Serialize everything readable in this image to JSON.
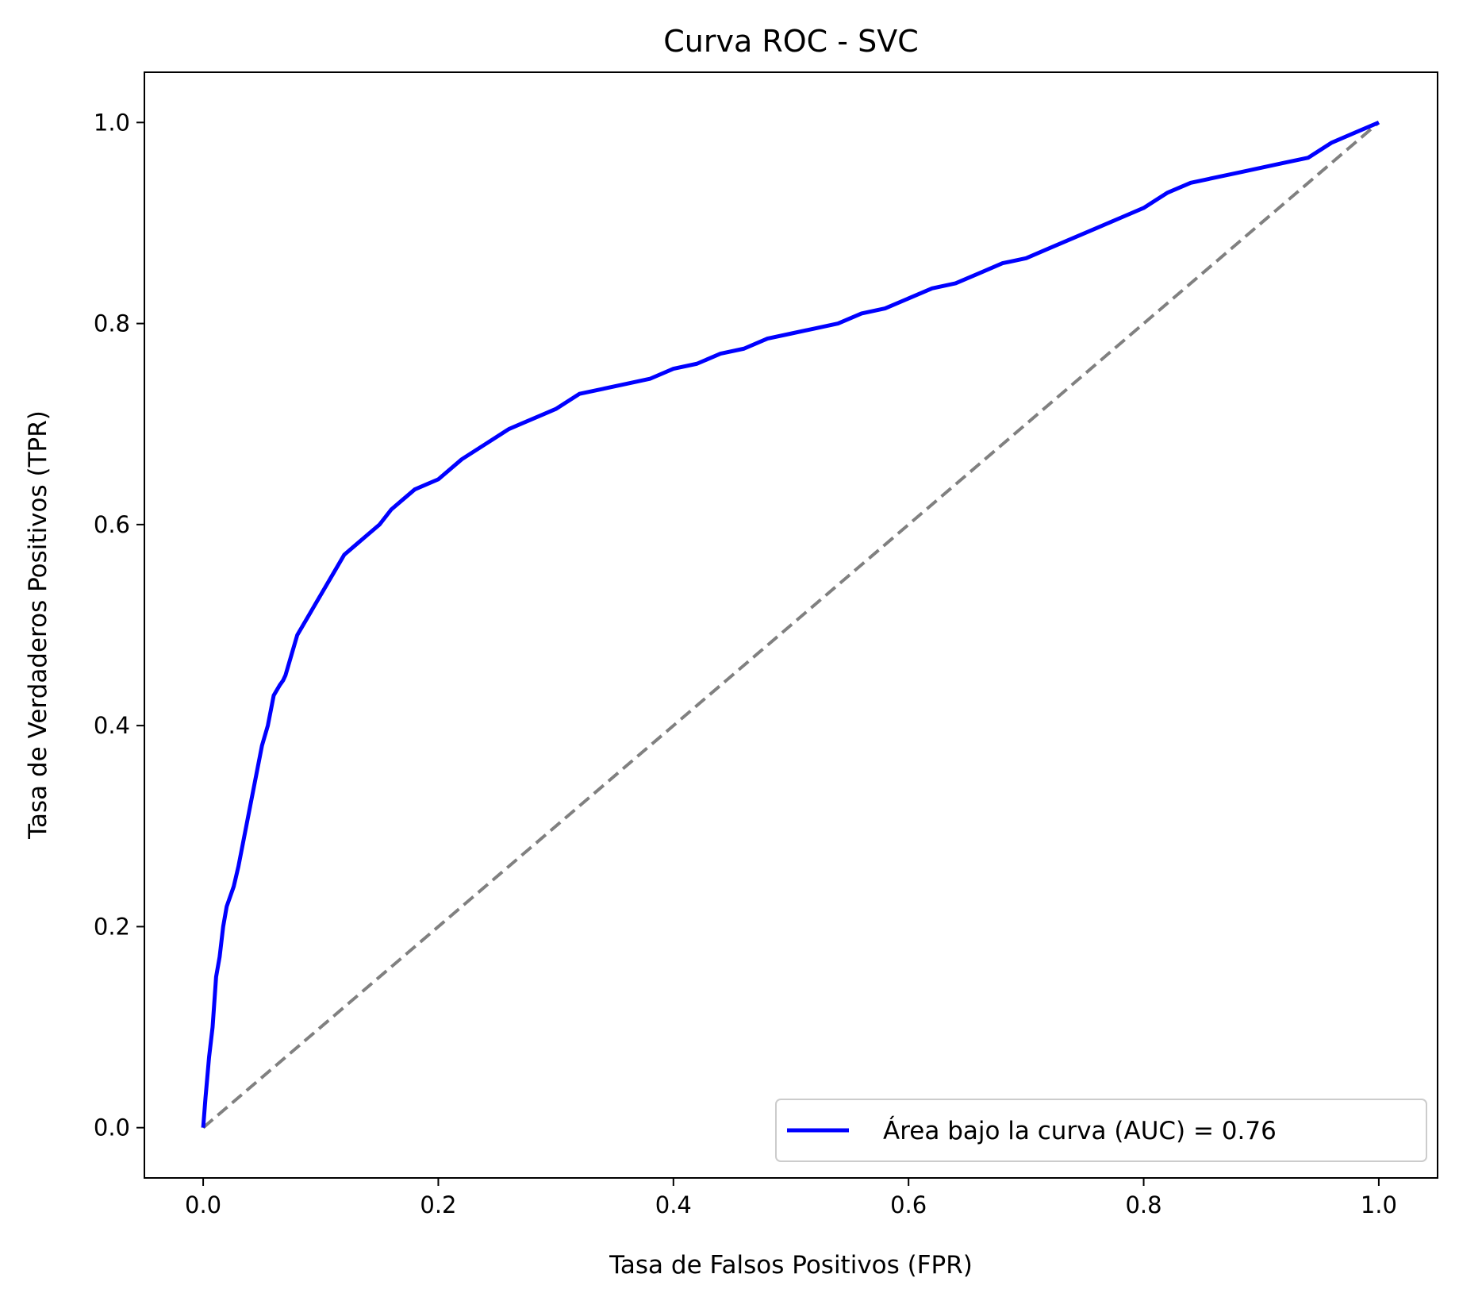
{
  "chart_data": {
    "type": "line",
    "title": "Curva ROC - SVC",
    "xlabel": "Tasa de Falsos Positivos (FPR)",
    "ylabel": "Tasa de Verdaderos Positivos (TPR)",
    "xlim": [
      -0.05,
      1.05
    ],
    "ylim": [
      -0.05,
      1.05
    ],
    "xticks": [
      "0.0",
      "0.2",
      "0.4",
      "0.6",
      "0.8",
      "1.0"
    ],
    "yticks": [
      "0.0",
      "0.2",
      "0.4",
      "0.6",
      "0.8",
      "1.0"
    ],
    "grid": false,
    "legend_position": "lower-right",
    "series": [
      {
        "name": "Área bajo la curva (AUC) = 0.76",
        "color": "#0000ff",
        "style": "solid",
        "x": [
          0.0,
          0.002,
          0.005,
          0.008,
          0.011,
          0.014,
          0.017,
          0.02,
          0.023,
          0.026,
          0.03,
          0.035,
          0.04,
          0.045,
          0.05,
          0.055,
          0.06,
          0.065,
          0.068,
          0.07,
          0.075,
          0.08,
          0.085,
          0.09,
          0.095,
          0.1,
          0.11,
          0.12,
          0.13,
          0.14,
          0.15,
          0.16,
          0.17,
          0.18,
          0.19,
          0.2,
          0.22,
          0.24,
          0.26,
          0.27,
          0.29,
          0.3,
          0.32,
          0.34,
          0.36,
          0.38,
          0.4,
          0.42,
          0.44,
          0.46,
          0.48,
          0.5,
          0.52,
          0.54,
          0.56,
          0.58,
          0.6,
          0.62,
          0.64,
          0.66,
          0.68,
          0.7,
          0.72,
          0.74,
          0.76,
          0.78,
          0.8,
          0.82,
          0.84,
          0.86,
          0.88,
          0.9,
          0.92,
          0.94,
          0.96,
          0.98,
          1.0
        ],
        "y": [
          0.0,
          0.03,
          0.07,
          0.1,
          0.15,
          0.17,
          0.2,
          0.22,
          0.23,
          0.24,
          0.26,
          0.29,
          0.32,
          0.35,
          0.38,
          0.4,
          0.43,
          0.44,
          0.445,
          0.45,
          0.47,
          0.49,
          0.5,
          0.51,
          0.52,
          0.53,
          0.55,
          0.57,
          0.58,
          0.59,
          0.6,
          0.615,
          0.625,
          0.635,
          0.64,
          0.645,
          0.665,
          0.68,
          0.695,
          0.7,
          0.71,
          0.715,
          0.73,
          0.735,
          0.74,
          0.745,
          0.755,
          0.76,
          0.77,
          0.775,
          0.785,
          0.79,
          0.795,
          0.8,
          0.81,
          0.815,
          0.825,
          0.835,
          0.84,
          0.85,
          0.86,
          0.865,
          0.875,
          0.885,
          0.895,
          0.905,
          0.915,
          0.93,
          0.94,
          0.945,
          0.95,
          0.955,
          0.96,
          0.965,
          0.98,
          0.99,
          1.0
        ]
      },
      {
        "color": "#808080",
        "style": "dashed",
        "x": [
          0,
          1
        ],
        "y": [
          0,
          1
        ]
      }
    ]
  }
}
